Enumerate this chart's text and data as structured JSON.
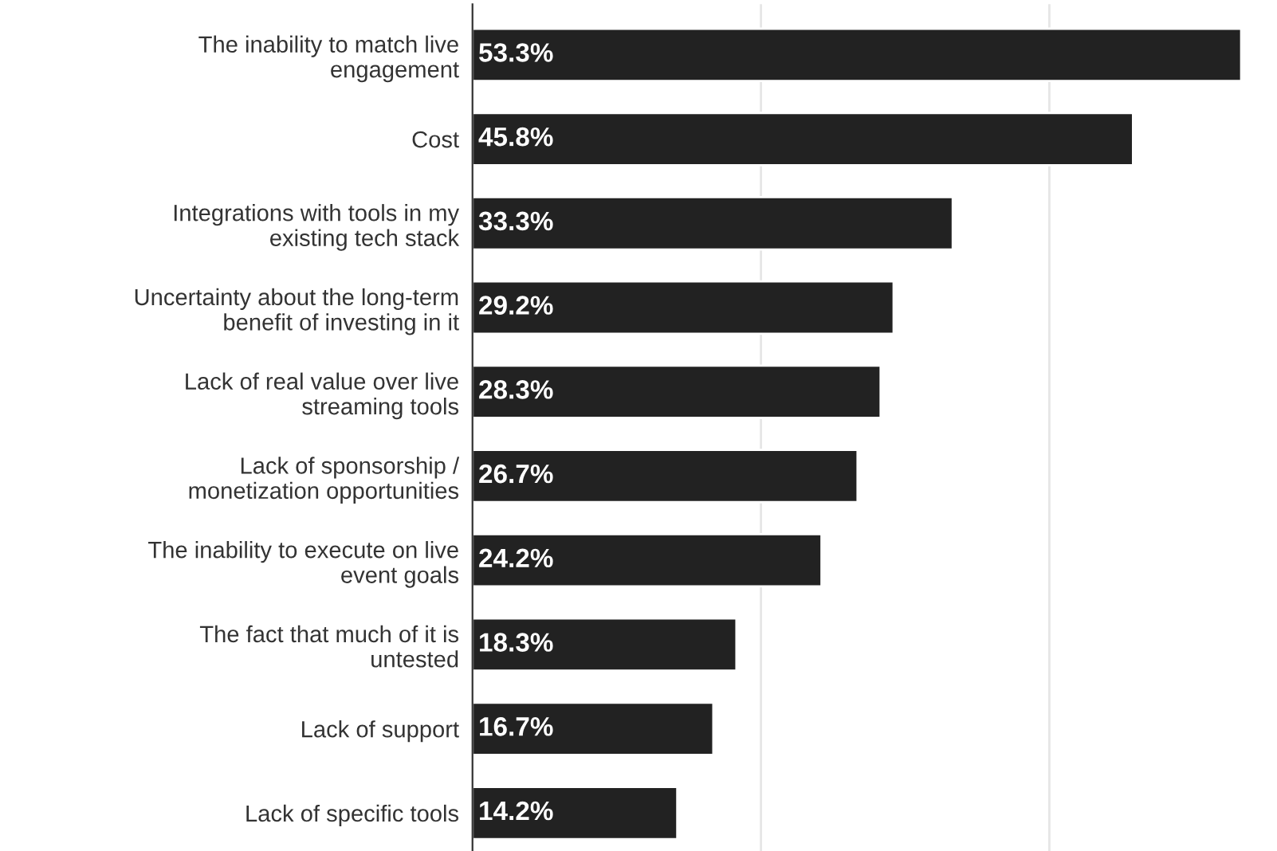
{
  "chart_data": {
    "type": "bar",
    "orientation": "horizontal",
    "categories": [
      "The inability to match live engagement",
      "Cost",
      "Integrations with tools in my existing tech stack",
      "Uncertainty about the long-term benefit of investing in it",
      "Lack of real value over live streaming tools",
      "Lack of sponsorship / monetization opportunities",
      "The inability to execute on live event goals",
      "The fact that much of it is untested",
      "Lack of support",
      "Lack of specific tools"
    ],
    "values": [
      53.3,
      45.8,
      33.3,
      29.2,
      28.3,
      26.7,
      24.2,
      18.3,
      16.7,
      14.2
    ],
    "value_labels": [
      "53.3%",
      "45.8%",
      "33.3%",
      "29.2%",
      "28.3%",
      "26.7%",
      "24.2%",
      "18.3%",
      "16.7%",
      "14.2%"
    ],
    "color": "#222222",
    "ref_lines": [
      {
        "axis": "x",
        "value": 20,
        "color": "#e6e6e6"
      },
      {
        "axis": "x",
        "value": 40,
        "color": "#e6e6e6"
      }
    ],
    "tick_labels": "y"
  }
}
